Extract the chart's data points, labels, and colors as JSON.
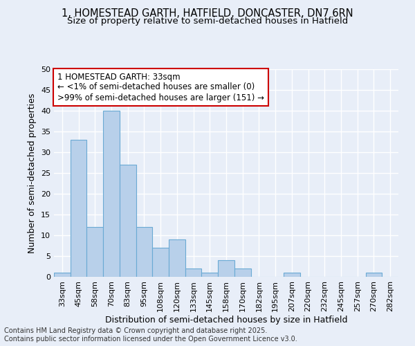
{
  "title": "1, HOMESTEAD GARTH, HATFIELD, DONCASTER, DN7 6RN",
  "subtitle": "Size of property relative to semi-detached houses in Hatfield",
  "xlabel": "Distribution of semi-detached houses by size in Hatfield",
  "ylabel": "Number of semi-detached properties",
  "categories": [
    "33sqm",
    "45sqm",
    "58sqm",
    "70sqm",
    "83sqm",
    "95sqm",
    "108sqm",
    "120sqm",
    "133sqm",
    "145sqm",
    "158sqm",
    "170sqm",
    "182sqm",
    "195sqm",
    "207sqm",
    "220sqm",
    "232sqm",
    "245sqm",
    "257sqm",
    "270sqm",
    "282sqm"
  ],
  "values": [
    1,
    33,
    12,
    40,
    27,
    12,
    7,
    9,
    2,
    1,
    4,
    2,
    0,
    0,
    1,
    0,
    0,
    0,
    0,
    1,
    0
  ],
  "bar_color": "#b8d0ea",
  "bar_edge_color": "#6aaad4",
  "annotation_box_text_line1": "1 HOMESTEAD GARTH: 33sqm",
  "annotation_box_text_line2": "← <1% of semi-detached houses are smaller (0)",
  "annotation_box_text_line3": ">99% of semi-detached houses are larger (151) →",
  "annotation_box_color": "#ffffff",
  "annotation_box_edge_color": "#cc0000",
  "ylim": [
    0,
    50
  ],
  "yticks": [
    0,
    5,
    10,
    15,
    20,
    25,
    30,
    35,
    40,
    45,
    50
  ],
  "bg_color": "#e8eef8",
  "plot_bg_color": "#e8eef8",
  "grid_color": "#ffffff",
  "footer_text": "Contains HM Land Registry data © Crown copyright and database right 2025.\nContains public sector information licensed under the Open Government Licence v3.0.",
  "title_fontsize": 10.5,
  "subtitle_fontsize": 9.5,
  "axis_label_fontsize": 9,
  "tick_fontsize": 8,
  "footer_fontsize": 7,
  "annotation_fontsize": 8.5
}
